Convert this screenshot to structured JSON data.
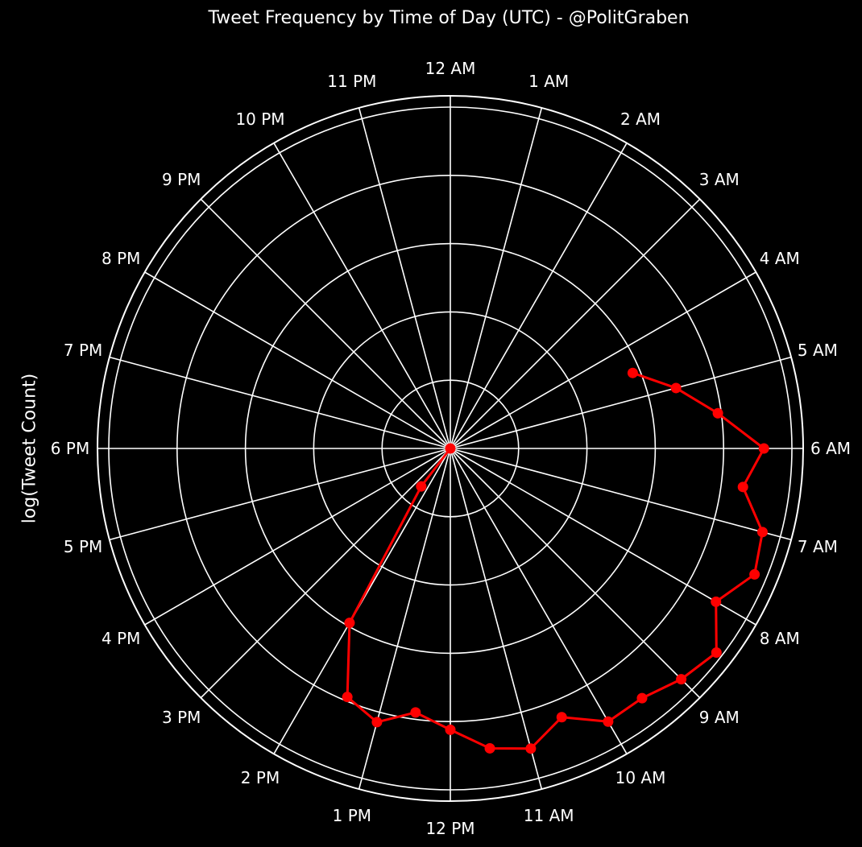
{
  "chart_data": {
    "type": "line",
    "subtype": "polar",
    "title": "Tweet Frequency by Time of Day (UTC) - @PolitGraben",
    "xlabel": "",
    "ylabel": "log(Tweet Count)",
    "angular_axis": {
      "direction": "clockwise",
      "zero_location": "top",
      "tick_labels": [
        "12 AM",
        "1 AM",
        "2 AM",
        "3 AM",
        "4 AM",
        "5 AM",
        "6 AM",
        "7 AM",
        "8 AM",
        "9 AM",
        "10 AM",
        "11 AM",
        "12 PM",
        "1 PM",
        "2 PM",
        "3 PM",
        "4 PM",
        "5 PM",
        "6 PM",
        "7 PM",
        "8 PM",
        "9 PM",
        "10 PM",
        "11 PM"
      ]
    },
    "radial_axis": {
      "range": [
        0,
        5.15
      ],
      "gridlines": [
        1,
        2,
        3,
        4,
        5
      ],
      "tick_labels_visible": false
    },
    "grid": true,
    "legend": null,
    "series": [
      {
        "name": "log(Tweet Count)",
        "color": "#ff0000",
        "marker": "circle",
        "x_hours": [
          4.5,
          5.0,
          5.5,
          6.0,
          6.5,
          7.0,
          7.5,
          8.0,
          8.5,
          9.0,
          9.5,
          10.0,
          10.5,
          11.0,
          11.5,
          12.0,
          12.5,
          13.0,
          13.5,
          14.0,
          14.5,
          15.0
        ],
        "values": [
          2.89,
          3.42,
          3.95,
          4.59,
          4.32,
          4.73,
          4.82,
          4.49,
          4.91,
          4.78,
          4.61,
          4.62,
          4.26,
          4.55,
          4.43,
          4.12,
          3.9,
          4.15,
          3.94,
          2.95,
          0.7,
          0.0
        ]
      }
    ]
  },
  "colors": {
    "background": "#000000",
    "grid": "#ffffff",
    "series": "#ff0000",
    "text": "#ffffff"
  }
}
